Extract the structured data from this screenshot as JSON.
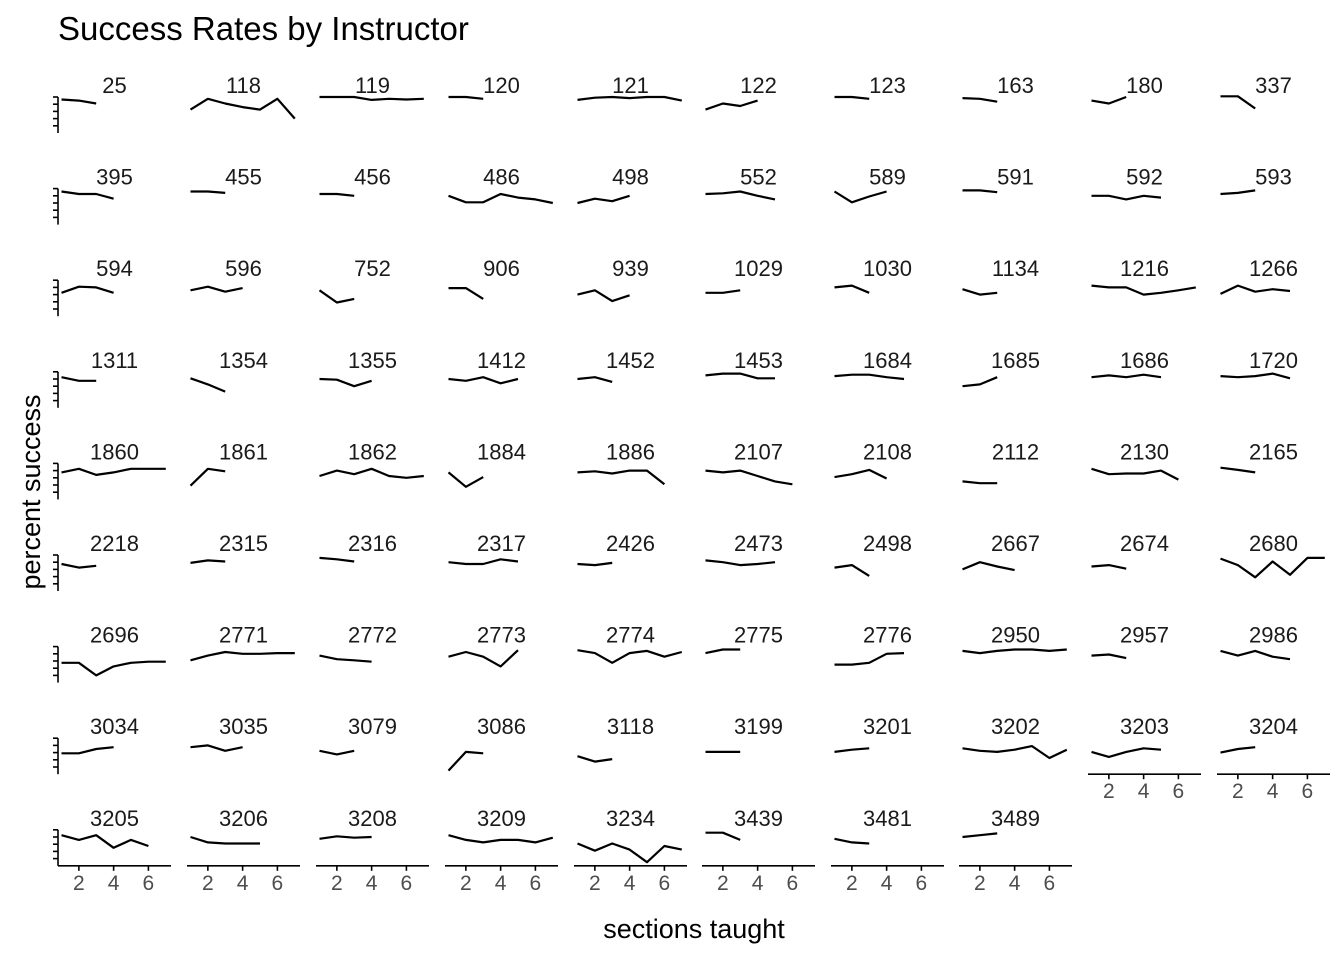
{
  "chart_data": {
    "type": "line",
    "title": "Success Rates by Instructor",
    "xlabel": "sections taught",
    "ylabel": "percent success",
    "x_ticks": [
      2,
      4,
      6
    ],
    "xlim": [
      0.8,
      7.3
    ],
    "ylim": [
      0,
      1
    ],
    "y_tick_values": [
      0.2,
      0.4,
      0.6,
      0.8,
      1.0
    ],
    "grid": false,
    "facet_columns": 10,
    "line_color": "#000000",
    "facets": [
      {
        "id": "25",
        "values": [
          0.93,
          0.9,
          0.82
        ]
      },
      {
        "id": "118",
        "values": [
          0.65,
          0.95,
          0.82,
          0.72,
          0.65,
          0.95,
          0.4
        ]
      },
      {
        "id": "119",
        "values": [
          1.0,
          1.0,
          1.0,
          0.92,
          0.95,
          0.93,
          0.95
        ]
      },
      {
        "id": "120",
        "values": [
          1.0,
          1.0,
          0.95
        ]
      },
      {
        "id": "121",
        "values": [
          0.92,
          0.98,
          1.0,
          0.97,
          1.0,
          1.0,
          0.9
        ]
      },
      {
        "id": "122",
        "values": [
          0.65,
          0.82,
          0.75,
          0.9
        ]
      },
      {
        "id": "123",
        "values": [
          1.0,
          1.0,
          0.95
        ]
      },
      {
        "id": "163",
        "values": [
          0.97,
          0.95,
          0.87
        ]
      },
      {
        "id": "180",
        "values": [
          0.9,
          0.82,
          1.0
        ]
      },
      {
        "id": "337",
        "values": [
          1.02,
          1.02,
          0.68
        ]
      },
      {
        "id": "395",
        "values": [
          0.92,
          0.85,
          0.85,
          0.72
        ]
      },
      {
        "id": "455",
        "values": [
          0.92,
          0.92,
          0.88
        ]
      },
      {
        "id": "456",
        "values": [
          0.85,
          0.85,
          0.8
        ]
      },
      {
        "id": "486",
        "values": [
          0.8,
          0.62,
          0.62,
          0.85,
          0.75,
          0.7,
          0.6
        ]
      },
      {
        "id": "498",
        "values": [
          0.6,
          0.72,
          0.65,
          0.8
        ]
      },
      {
        "id": "552",
        "values": [
          0.85,
          0.87,
          0.92,
          0.8,
          0.7
        ]
      },
      {
        "id": "589",
        "values": [
          0.92,
          0.62,
          0.78,
          0.92
        ]
      },
      {
        "id": "591",
        "values": [
          0.95,
          0.95,
          0.9
        ]
      },
      {
        "id": "592",
        "values": [
          0.8,
          0.8,
          0.7,
          0.8,
          0.75
        ]
      },
      {
        "id": "593",
        "values": [
          0.85,
          0.88,
          0.95
        ]
      },
      {
        "id": "594",
        "values": [
          0.65,
          0.82,
          0.8,
          0.65
        ]
      },
      {
        "id": "596",
        "values": [
          0.72,
          0.82,
          0.68,
          0.78
        ]
      },
      {
        "id": "752",
        "values": [
          0.72,
          0.38,
          0.48
        ]
      },
      {
        "id": "906",
        "values": [
          0.78,
          0.78,
          0.48
        ]
      },
      {
        "id": "939",
        "values": [
          0.6,
          0.72,
          0.42,
          0.58
        ]
      },
      {
        "id": "1029",
        "values": [
          0.65,
          0.65,
          0.72
        ]
      },
      {
        "id": "1030",
        "values": [
          0.8,
          0.85,
          0.65
        ]
      },
      {
        "id": "1134",
        "values": [
          0.75,
          0.6,
          0.65
        ]
      },
      {
        "id": "1216",
        "values": [
          0.85,
          0.8,
          0.8,
          0.6,
          0.65,
          0.72,
          0.8
        ]
      },
      {
        "id": "1266",
        "values": [
          0.62,
          0.85,
          0.68,
          0.75,
          0.7
        ]
      },
      {
        "id": "1311",
        "values": [
          0.85,
          0.75,
          0.75
        ]
      },
      {
        "id": "1354",
        "values": [
          0.82,
          0.65,
          0.45
        ]
      },
      {
        "id": "1355",
        "values": [
          0.8,
          0.78,
          0.6,
          0.75
        ]
      },
      {
        "id": "1412",
        "values": [
          0.8,
          0.75,
          0.85,
          0.68,
          0.8
        ]
      },
      {
        "id": "1452",
        "values": [
          0.8,
          0.85,
          0.72
        ]
      },
      {
        "id": "1453",
        "values": [
          0.9,
          0.95,
          0.95,
          0.82,
          0.82
        ]
      },
      {
        "id": "1684",
        "values": [
          0.88,
          0.92,
          0.92,
          0.85,
          0.8
        ]
      },
      {
        "id": "1685",
        "values": [
          0.6,
          0.65,
          0.85
        ]
      },
      {
        "id": "1686",
        "values": [
          0.85,
          0.9,
          0.85,
          0.92,
          0.85
        ]
      },
      {
        "id": "1720",
        "values": [
          0.88,
          0.85,
          0.88,
          0.95,
          0.82
        ]
      },
      {
        "id": "1860",
        "values": [
          0.75,
          0.85,
          0.68,
          0.75,
          0.85,
          0.85,
          0.85
        ]
      },
      {
        "id": "1861",
        "values": [
          0.38,
          0.85,
          0.78
        ]
      },
      {
        "id": "1862",
        "values": [
          0.65,
          0.8,
          0.7,
          0.85,
          0.65,
          0.6,
          0.65
        ]
      },
      {
        "id": "1884",
        "values": [
          0.75,
          0.35,
          0.62
        ]
      },
      {
        "id": "1886",
        "values": [
          0.75,
          0.78,
          0.72,
          0.8,
          0.8,
          0.42
        ]
      },
      {
        "id": "2107",
        "values": [
          0.8,
          0.75,
          0.8,
          0.65,
          0.5,
          0.42
        ]
      },
      {
        "id": "2108",
        "values": [
          0.62,
          0.7,
          0.82,
          0.58
        ]
      },
      {
        "id": "2112",
        "values": [
          0.5,
          0.45,
          0.45
        ]
      },
      {
        "id": "2130",
        "values": [
          0.85,
          0.7,
          0.72,
          0.72,
          0.8,
          0.55
        ]
      },
      {
        "id": "2165",
        "values": [
          0.88,
          0.82,
          0.75
        ]
      },
      {
        "id": "2218",
        "values": [
          0.75,
          0.65,
          0.7
        ]
      },
      {
        "id": "2315",
        "values": [
          0.78,
          0.85,
          0.82
        ]
      },
      {
        "id": "2316",
        "values": [
          0.92,
          0.88,
          0.82
        ]
      },
      {
        "id": "2317",
        "values": [
          0.8,
          0.75,
          0.75,
          0.88,
          0.82
        ]
      },
      {
        "id": "2426",
        "values": [
          0.75,
          0.72,
          0.78
        ]
      },
      {
        "id": "2473",
        "values": [
          0.85,
          0.8,
          0.72,
          0.75,
          0.8
        ]
      },
      {
        "id": "2498",
        "values": [
          0.65,
          0.72,
          0.42
        ]
      },
      {
        "id": "2667",
        "values": [
          0.6,
          0.8,
          0.68,
          0.58
        ]
      },
      {
        "id": "2674",
        "values": [
          0.68,
          0.72,
          0.62
        ]
      },
      {
        "id": "2680",
        "values": [
          0.9,
          0.72,
          0.38,
          0.82,
          0.45,
          0.92,
          0.92
        ]
      },
      {
        "id": "2696",
        "values": [
          0.55,
          0.55,
          0.2,
          0.45,
          0.55,
          0.58,
          0.58
        ]
      },
      {
        "id": "2771",
        "values": [
          0.62,
          0.75,
          0.85,
          0.8,
          0.8,
          0.82,
          0.82
        ]
      },
      {
        "id": "2772",
        "values": [
          0.75,
          0.65,
          0.62,
          0.58
        ]
      },
      {
        "id": "2773",
        "values": [
          0.72,
          0.85,
          0.72,
          0.45,
          0.9
        ]
      },
      {
        "id": "2774",
        "values": [
          0.9,
          0.82,
          0.55,
          0.82,
          0.88,
          0.72,
          0.85
        ]
      },
      {
        "id": "2775",
        "values": [
          0.82,
          0.92,
          0.92
        ]
      },
      {
        "id": "2776",
        "values": [
          0.5,
          0.5,
          0.55,
          0.8,
          0.82
        ]
      },
      {
        "id": "2950",
        "values": [
          0.88,
          0.82,
          0.88,
          0.92,
          0.92,
          0.88,
          0.92
        ]
      },
      {
        "id": "2957",
        "values": [
          0.75,
          0.78,
          0.68
        ]
      },
      {
        "id": "2986",
        "values": [
          0.88,
          0.75,
          0.88,
          0.72,
          0.65
        ]
      },
      {
        "id": "3034",
        "values": [
          0.58,
          0.58,
          0.7,
          0.75
        ]
      },
      {
        "id": "3035",
        "values": [
          0.75,
          0.8,
          0.65,
          0.75
        ]
      },
      {
        "id": "3079",
        "values": [
          0.65,
          0.55,
          0.65
        ]
      },
      {
        "id": "3086",
        "values": [
          0.1,
          0.62,
          0.58
        ]
      },
      {
        "id": "3118",
        "values": [
          0.5,
          0.35,
          0.42
        ]
      },
      {
        "id": "3199",
        "values": [
          0.62,
          0.62,
          0.62
        ]
      },
      {
        "id": "3201",
        "values": [
          0.62,
          0.68,
          0.72
        ]
      },
      {
        "id": "3202",
        "values": [
          0.72,
          0.65,
          0.62,
          0.68,
          0.78,
          0.45,
          0.68
        ]
      },
      {
        "id": "3203",
        "values": [
          0.62,
          0.48,
          0.62,
          0.72,
          0.68
        ]
      },
      {
        "id": "3204",
        "values": [
          0.6,
          0.7,
          0.75
        ]
      },
      {
        "id": "3205",
        "values": [
          0.85,
          0.72,
          0.85,
          0.5,
          0.72,
          0.55
        ]
      },
      {
        "id": "3206",
        "values": [
          0.8,
          0.65,
          0.62,
          0.62,
          0.62
        ]
      },
      {
        "id": "3208",
        "values": [
          0.75,
          0.82,
          0.78,
          0.8
        ]
      },
      {
        "id": "3209",
        "values": [
          0.85,
          0.72,
          0.65,
          0.72,
          0.72,
          0.65,
          0.78
        ]
      },
      {
        "id": "3234",
        "values": [
          0.62,
          0.42,
          0.62,
          0.45,
          0.1,
          0.55,
          0.45
        ]
      },
      {
        "id": "3439",
        "values": [
          0.92,
          0.92,
          0.72
        ]
      },
      {
        "id": "3481",
        "values": [
          0.75,
          0.65,
          0.62
        ]
      },
      {
        "id": "3489",
        "values": [
          0.8,
          0.85,
          0.9
        ]
      }
    ]
  }
}
